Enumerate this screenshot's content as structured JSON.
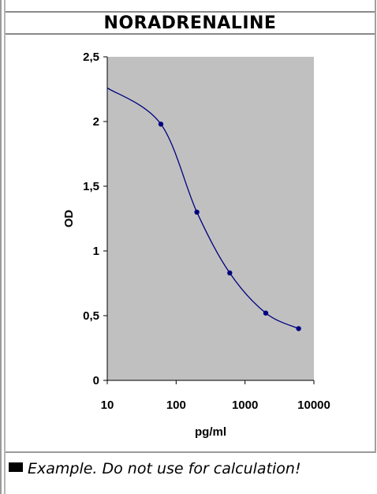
{
  "chart_data": {
    "type": "line",
    "title": "NORADRENALINE",
    "xlabel": "pg/ml",
    "ylabel": "OD",
    "x_scale": "log",
    "xlim": [
      10,
      10000
    ],
    "ylim": [
      0,
      2.5
    ],
    "x_ticks": [
      10,
      100,
      1000,
      10000
    ],
    "x_tick_labels": [
      "10",
      "100",
      "1000",
      "10000"
    ],
    "y_ticks": [
      0,
      0.5,
      1,
      1.5,
      2,
      2.5
    ],
    "y_tick_labels": [
      "0",
      "0,5",
      "1",
      "1,5",
      "2",
      "2,5"
    ],
    "grid": false,
    "plot_background": "#c0c0c0",
    "series": [
      {
        "color": "#000080",
        "points": [
          {
            "x": 60,
            "y": 1.98
          },
          {
            "x": 200,
            "y": 1.3
          },
          {
            "x": 600,
            "y": 0.83
          },
          {
            "x": 2000,
            "y": 0.52
          },
          {
            "x": 6000,
            "y": 0.4
          }
        ],
        "curve_start": {
          "x": 10,
          "y": 2.26
        }
      }
    ]
  },
  "caption": {
    "text": "Example. Do not use for calculation!",
    "icon": "black-square-icon"
  }
}
